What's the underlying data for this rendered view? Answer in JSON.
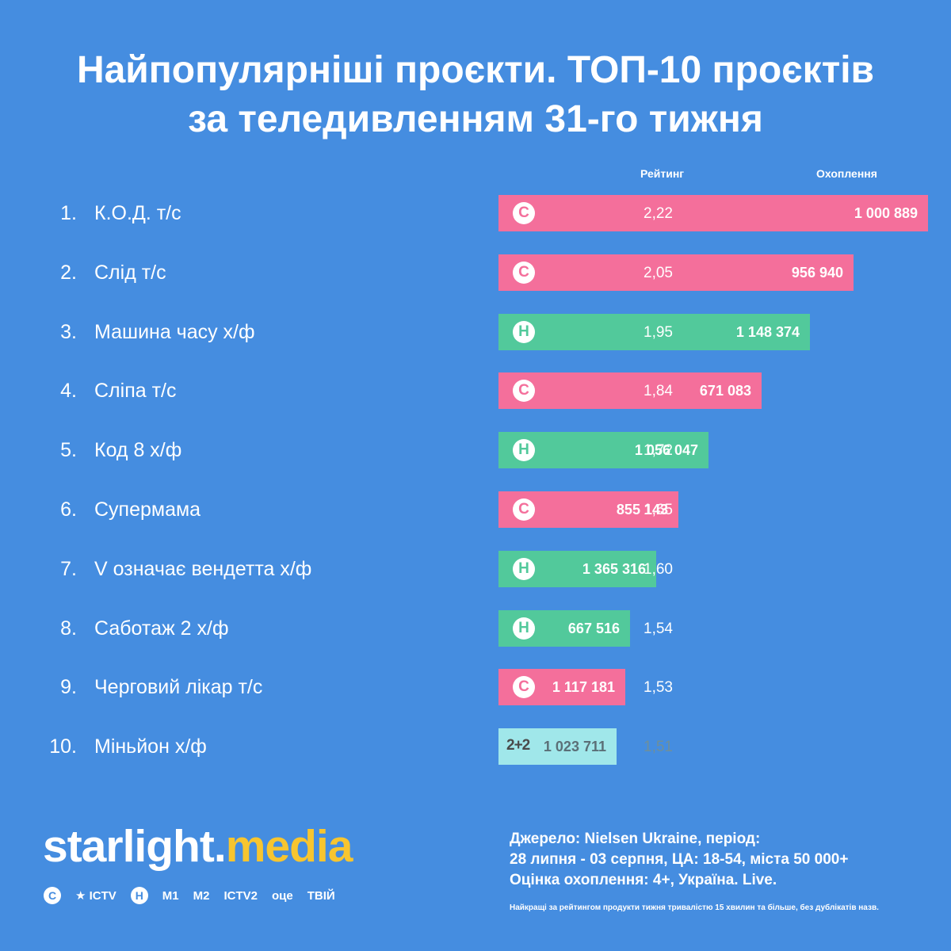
{
  "title": {
    "line1": "Найпопулярніші проєкти. ТОП-10 проєктів",
    "line2": "за теледивленням 31-го тижня"
  },
  "columns": {
    "rating": "Рейтинг",
    "reach": "Охоплення"
  },
  "colors": {
    "background": "#458de0",
    "stb": "#f46f9b",
    "novyi": "#52c99b",
    "oneplusone": "#a0e7ea",
    "brand_accent": "#f7c52f"
  },
  "chart_data": {
    "type": "bar",
    "categories": [
      "К.О.Д. т/с",
      "Слід т/с",
      "Машина часу х/ф",
      "Сліпа т/с",
      "Код 8 х/ф",
      "Супермама",
      "V означає вендетта х/ф",
      "Саботаж 2 х/ф",
      "Черговий лікар т/с",
      "Міньйон х/ф"
    ],
    "ranks": [
      "1.",
      "2.",
      "3.",
      "4.",
      "5.",
      "6.",
      "7.",
      "8.",
      "9.",
      "10."
    ],
    "series": [
      {
        "name": "Рейтинг",
        "values": [
          2.22,
          2.05,
          1.95,
          1.84,
          1.72,
          1.65,
          1.6,
          1.54,
          1.53,
          1.51
        ],
        "labels": [
          "2,22",
          "2,05",
          "1,95",
          "1,84",
          "1,72",
          "1,65",
          "1,60",
          "1,54",
          "1,53",
          "1,51"
        ]
      },
      {
        "name": "Охоплення",
        "values": [
          1000889,
          956940,
          1148374,
          671083,
          1056047,
          855143,
          1365316,
          667516,
          1117181,
          1023711
        ],
        "labels": [
          "1 000 889",
          "956 940",
          "1 148 374",
          "671 083",
          "1 056 047",
          "855 143",
          "1 365 316",
          "667 516",
          "1 117 181",
          "1 023 711"
        ]
      }
    ],
    "channels": [
      "stb",
      "stb",
      "novyi",
      "stb",
      "novyi",
      "stb",
      "novyi",
      "novyi",
      "stb",
      "oneplusone"
    ],
    "channel_marks": {
      "stb": "С",
      "novyi": "Н",
      "oneplusone": "2+2"
    }
  },
  "brand": {
    "main": "starlight",
    "dot": ".",
    "accent": "media"
  },
  "channels_row": [
    {
      "label": "С",
      "icon": "stb-icon",
      "style": "circle"
    },
    {
      "label": "★ ICTV",
      "icon": "ictv-icon",
      "style": "text"
    },
    {
      "label": "Н",
      "icon": "novyi-icon",
      "style": "circle"
    },
    {
      "label": "M1",
      "icon": "m1-icon",
      "style": "text"
    },
    {
      "label": "M2",
      "icon": "m2-icon",
      "style": "text"
    },
    {
      "label": "ICTV2",
      "icon": "ictv2-icon",
      "style": "text"
    },
    {
      "label": "оце",
      "icon": "otse-icon",
      "style": "text"
    },
    {
      "label": "ТВІЙ",
      "icon": "tviy-icon",
      "style": "text"
    }
  ],
  "source": {
    "line1": "Джерело: Nielsen Ukraine, період:",
    "line2": "28 липня - 03 серпня, ЦА: 18-54, міста 50 000+",
    "line3": "Оцінка охоплення: 4+, Україна. Live.",
    "note": "Найкращі за рейтингом продукти тижня тривалістю 15 хвилин та більше, без дублікатів назв."
  }
}
